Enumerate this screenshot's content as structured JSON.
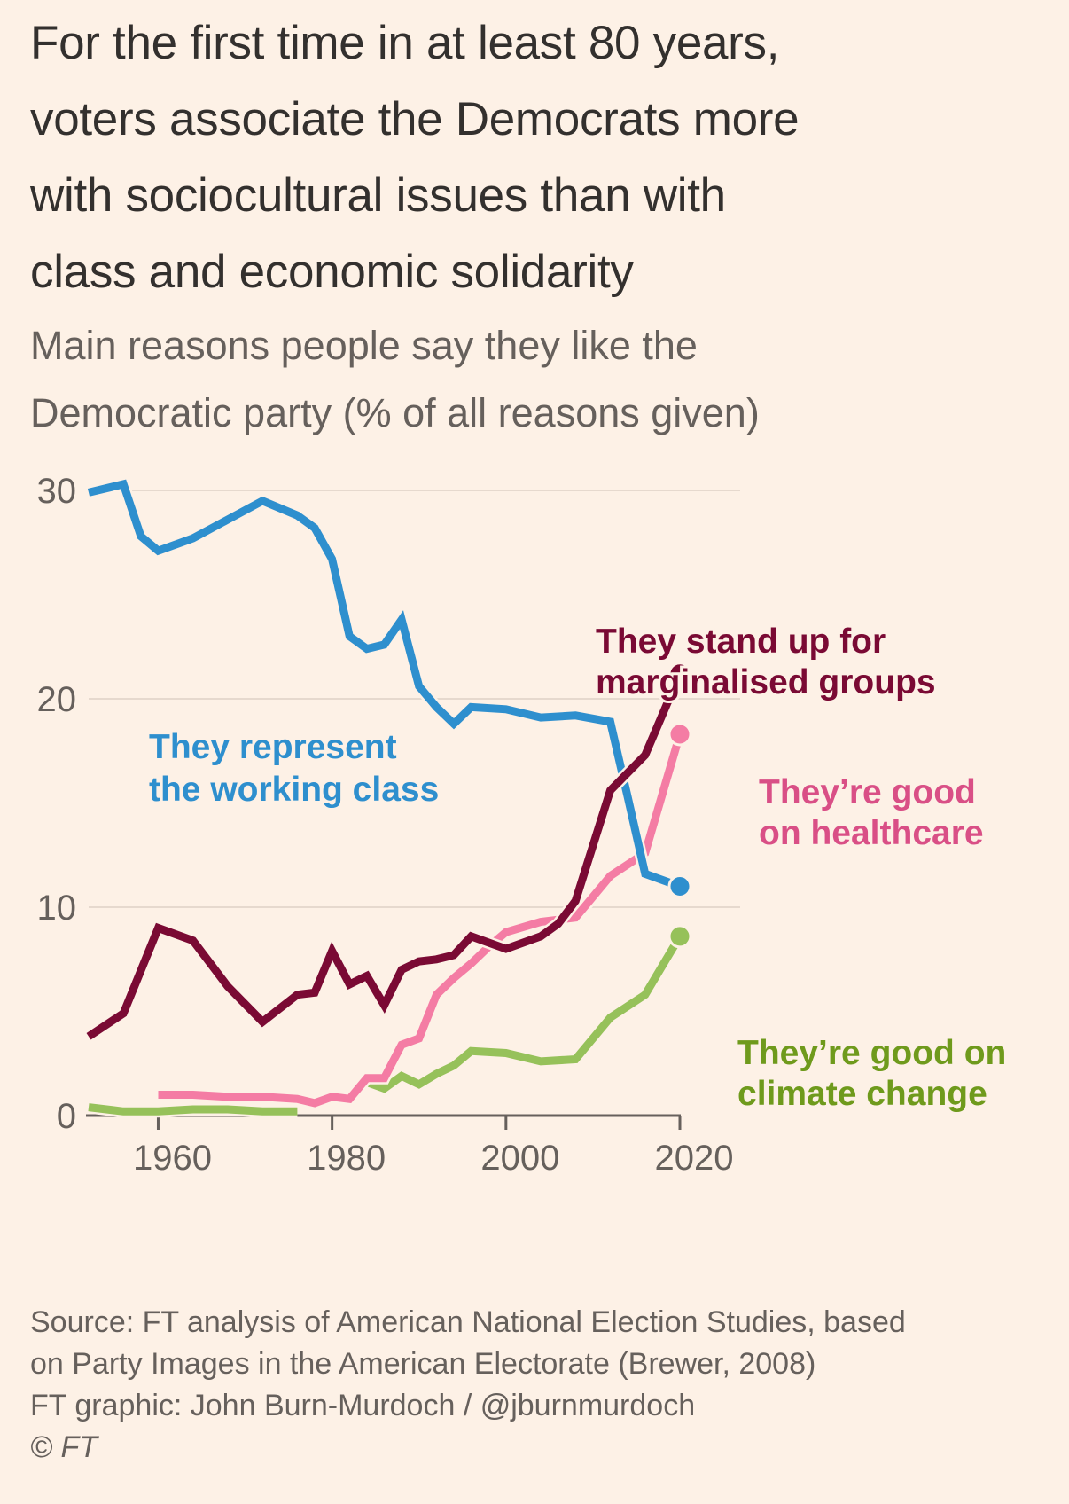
{
  "header": {
    "title": "For the first time in at least 80 years, voters associate the Democrats more with sociocultural issues than with class and economic solidarity",
    "title_lines": [
      "For the first time in at least 80 years,",
      "voters associate the Democrats more",
      "with sociocultural issues than with",
      "class and economic solidarity"
    ],
    "subtitle_lines": [
      "Main reasons people say they like the",
      "Democratic party (% of all reasons given)"
    ]
  },
  "footer": {
    "source_lines": [
      "Source: FT analysis of American National Election Studies, based",
      "on Party Images in the American Electorate (Brewer, 2008)",
      "FT graphic: John Burn-Murdoch / @jburnmurdoch"
    ],
    "copyright": "© FT"
  },
  "chart_data": {
    "type": "line",
    "title": "For the first time in at least 80 years, voters associate the Democrats more with sociocultural issues than with class and economic solidarity",
    "subtitle": "Main reasons people say they like the Democratic party (% of all reasons given)",
    "xlabel": "",
    "ylabel": "% of all reasons given",
    "xlim": [
      1952,
      2020
    ],
    "ylim": [
      0,
      30
    ],
    "x_ticks": [
      1960,
      1980,
      2000,
      2020
    ],
    "x_tick_labels": [
      "1960",
      "1980",
      "2000",
      "2020"
    ],
    "y_ticks": [
      0,
      10,
      20,
      30
    ],
    "y_tick_labels": [
      "0",
      "10",
      "20",
      "30"
    ],
    "grid": "horizontal",
    "legend": "direct labels",
    "colors": {
      "background": "#fdf1e6",
      "grid": "#e6d9ce",
      "axis": "#66605c"
    },
    "series": [
      {
        "name": "They represent the working class",
        "label_lines": [
          "They represent",
          "the working class"
        ],
        "color": "#2e8fce",
        "label_color": "#2e8fce",
        "end_marker": true,
        "x": [
          1952,
          1956,
          1958,
          1960,
          1964,
          1968,
          1972,
          1976,
          1978,
          1980,
          1982,
          1984,
          1986,
          1988,
          1990,
          1992,
          1994,
          1996,
          2000,
          2004,
          2008,
          2012,
          2014,
          2016,
          2020
        ],
        "values": [
          29.9,
          30.3,
          27.8,
          27.1,
          27.7,
          28.6,
          29.5,
          28.8,
          28.2,
          26.7,
          23.0,
          22.4,
          22.6,
          23.8,
          20.6,
          19.6,
          18.8,
          19.6,
          19.5,
          19.1,
          19.2,
          18.9,
          15.3,
          11.6,
          11.0
        ]
      },
      {
        "name": "They stand up for marginalised groups",
        "label_lines": [
          "They stand up for",
          "marginalised groups"
        ],
        "color": "#7a0a34",
        "label_color": "#7a0a34",
        "end_marker": true,
        "x": [
          1952,
          1956,
          1960,
          1964,
          1968,
          1972,
          1976,
          1978,
          1980,
          1982,
          1984,
          1986,
          1988,
          1990,
          1992,
          1994,
          1996,
          2000,
          2004,
          2006,
          2008,
          2012,
          2016,
          2020
        ],
        "values": [
          3.8,
          4.9,
          9.0,
          8.4,
          6.2,
          4.5,
          5.8,
          5.9,
          7.9,
          6.3,
          6.7,
          5.3,
          7.0,
          7.4,
          7.5,
          7.7,
          8.6,
          8.0,
          8.6,
          9.2,
          10.3,
          15.6,
          17.3,
          21.2
        ]
      },
      {
        "name": "They're good on healthcare",
        "label_lines": [
          "They’re good",
          "on healthcare"
        ],
        "color": "#f47ca4",
        "label_color": "#d94f86",
        "end_marker": true,
        "x": [
          1960,
          1964,
          1968,
          1972,
          1976,
          1978,
          1980,
          1982,
          1984,
          1986,
          1988,
          1990,
          1992,
          1994,
          1996,
          1998,
          2000,
          2004,
          2008,
          2012,
          2016,
          2020
        ],
        "values": [
          1.0,
          1.0,
          0.9,
          0.9,
          0.8,
          0.6,
          0.9,
          0.8,
          1.8,
          1.8,
          3.4,
          3.7,
          5.8,
          6.6,
          7.3,
          8.1,
          8.8,
          9.3,
          9.5,
          11.5,
          12.6,
          18.3
        ]
      },
      {
        "name": "They're good on climate change",
        "label_lines": [
          "They’re good on",
          "climate change"
        ],
        "color": "#96c15a",
        "label_color": "#6f9a1c",
        "end_marker": true,
        "segments": [
          {
            "x": [
              1952,
              1956,
              1960,
              1964,
              1968,
              1972,
              1976
            ],
            "values": [
              0.4,
              0.2,
              0.2,
              0.3,
              0.3,
              0.2,
              0.2
            ]
          },
          {
            "x": [
              1984,
              1986,
              1988,
              1990,
              1992,
              1994,
              1996,
              2000,
              2004,
              2008,
              2012,
              2016,
              2020
            ],
            "values": [
              1.6,
              1.3,
              1.9,
              1.5,
              2.0,
              2.4,
              3.1,
              3.0,
              2.6,
              2.7,
              4.7,
              5.8,
              8.6
            ]
          }
        ]
      }
    ]
  }
}
